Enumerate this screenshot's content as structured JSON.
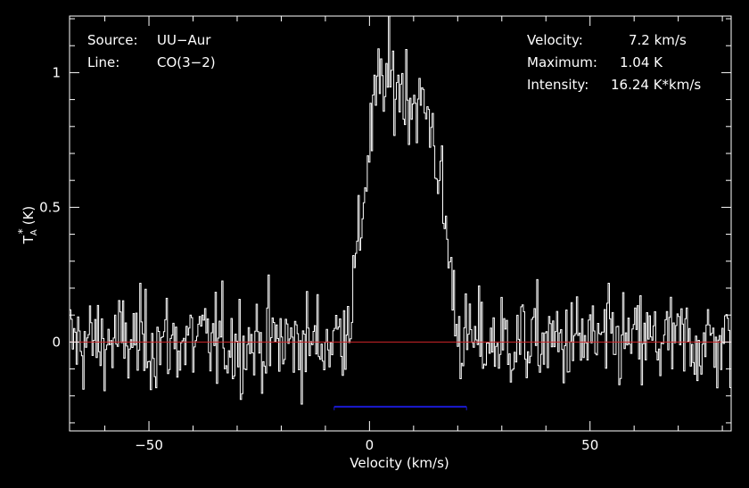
{
  "chart_data": {
    "type": "line",
    "title": "",
    "xlabel": "Velocity (km/s)",
    "ylabel_main": "T",
    "ylabel_sup": "*",
    "ylabel_sub": "A",
    "ylabel_unit": "(K)",
    "xlim": [
      -68,
      82
    ],
    "ylim": [
      -0.33,
      1.21
    ],
    "x_ticks": [
      -50,
      0,
      50
    ],
    "x_tick_labels": [
      "−50",
      "0",
      "50"
    ],
    "y_ticks": [
      0,
      0.5,
      1
    ],
    "y_tick_labels": [
      "0",
      "0.5",
      "1"
    ],
    "grid": false,
    "baseline": {
      "y": 0,
      "color": "#d0262a"
    },
    "window": {
      "x": [
        -8,
        22
      ],
      "y": -0.24,
      "color": "#1a1ad0"
    },
    "colors": {
      "background": "#000000",
      "spectrum": "#ffffff",
      "axes": "#ffffff"
    },
    "series": [
      {
        "x": [
          -68,
          -60,
          -50,
          -40,
          -30,
          -20,
          -10,
          -6,
          -4,
          -2,
          0,
          2,
          4,
          6,
          8,
          10,
          12,
          14,
          16,
          18,
          20,
          22,
          30,
          40,
          50,
          60,
          70,
          82
        ],
        "y": [
          0,
          0,
          0,
          0,
          0,
          0,
          0,
          0.04,
          0.15,
          0.42,
          0.75,
          0.94,
          0.97,
          0.96,
          0.94,
          0.9,
          0.87,
          0.82,
          0.6,
          0.32,
          0.05,
          0,
          0,
          0,
          0,
          0,
          0,
          0
        ],
        "noise_rms": 0.09
      }
    ],
    "info_left": [
      {
        "key": "Source:",
        "value": "UU−Aur"
      },
      {
        "key": "Line:",
        "value": "CO(3−2)"
      }
    ],
    "info_right": [
      {
        "key": "Velocity:",
        "value": "7.2 km/s"
      },
      {
        "key": "Maximum:",
        "value": "1.04 K"
      },
      {
        "key": "Intensity:",
        "value": "16.24 K*km/s"
      }
    ]
  }
}
